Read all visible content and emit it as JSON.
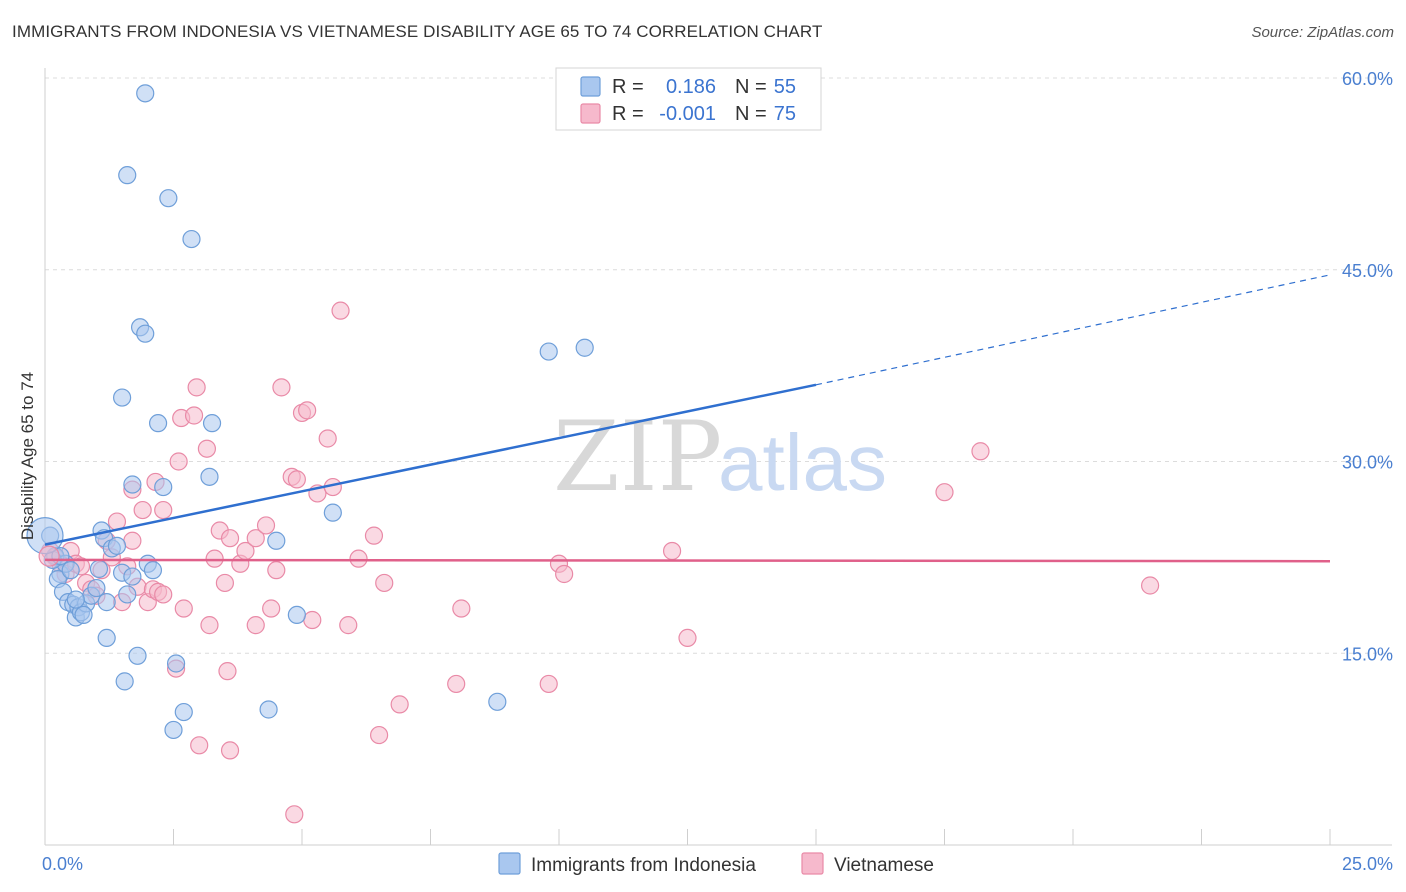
{
  "chart_data": {
    "type": "scatter",
    "title": "IMMIGRANTS FROM INDONESIA VS VIETNAMESE DISABILITY AGE 65 TO 74 CORRELATION CHART",
    "source": "Source: ZipAtlas.com",
    "ylabel": "Disability Age 65 to 74",
    "xlim": [
      0,
      25
    ],
    "ylim": [
      0,
      60
    ],
    "x_tick_labels": [
      "0.0%",
      "25.0%"
    ],
    "y_ticks": [
      15,
      30,
      45,
      60
    ],
    "y_tick_labels": [
      "15.0%",
      "30.0%",
      "45.0%",
      "60.0%"
    ],
    "watermark": {
      "zip": "ZIP",
      "atlas": "atlas"
    },
    "legend": {
      "rows": [
        {
          "r_label": "R = ",
          "r_value": "0.186",
          "n_label": "N = ",
          "n_value": "55"
        },
        {
          "r_label": "R = ",
          "r_value": "-0.001",
          "n_label": "N = ",
          "n_value": "75"
        }
      ]
    },
    "series": [
      {
        "name": "Immigrants from Indonesia",
        "color": "#a9c7ef",
        "stroke": "#6f9fd9",
        "line_color": "#2f6fcf",
        "trend": {
          "x0": 0,
          "y0": 23.5,
          "x1": 15,
          "y1": 36.0,
          "x_end": 25,
          "y_end": 44.6
        },
        "points": [
          [
            0.1,
            24.2
          ],
          [
            0.2,
            22.6
          ],
          [
            0.3,
            21.2
          ],
          [
            0.25,
            20.8
          ],
          [
            0.35,
            19.8
          ],
          [
            0.4,
            22.0
          ],
          [
            0.5,
            21.5
          ],
          [
            0.45,
            19.0
          ],
          [
            0.55,
            18.8
          ],
          [
            0.6,
            17.8
          ],
          [
            0.65,
            18.6
          ],
          [
            0.7,
            18.2
          ],
          [
            0.8,
            18.9
          ],
          [
            0.9,
            19.5
          ],
          [
            0.75,
            18.0
          ],
          [
            1.0,
            20.1
          ],
          [
            1.05,
            21.6
          ],
          [
            1.1,
            24.6
          ],
          [
            1.15,
            24.0
          ],
          [
            1.3,
            23.2
          ],
          [
            1.4,
            23.4
          ],
          [
            1.5,
            21.3
          ],
          [
            1.6,
            19.6
          ],
          [
            1.2,
            19.0
          ],
          [
            1.7,
            21.0
          ],
          [
            2.0,
            22.0
          ],
          [
            2.1,
            21.5
          ],
          [
            1.95,
            58.8
          ],
          [
            1.6,
            52.4
          ],
          [
            2.4,
            50.6
          ],
          [
            2.85,
            47.4
          ],
          [
            1.85,
            40.5
          ],
          [
            1.95,
            40.0
          ],
          [
            1.5,
            35.0
          ],
          [
            2.2,
            33.0
          ],
          [
            3.25,
            33.0
          ],
          [
            1.7,
            28.2
          ],
          [
            2.3,
            28.0
          ],
          [
            3.2,
            28.8
          ],
          [
            4.5,
            23.8
          ],
          [
            5.6,
            26.0
          ],
          [
            4.9,
            18.0
          ],
          [
            1.2,
            16.2
          ],
          [
            1.8,
            14.8
          ],
          [
            2.55,
            14.2
          ],
          [
            1.55,
            12.8
          ],
          [
            2.7,
            10.4
          ],
          [
            4.35,
            10.6
          ],
          [
            2.5,
            9.0
          ],
          [
            9.8,
            38.6
          ],
          [
            10.5,
            38.9
          ],
          [
            8.8,
            11.2
          ],
          [
            0.15,
            22.3
          ],
          [
            0.3,
            22.6
          ],
          [
            0.6,
            19.2
          ]
        ]
      },
      {
        "name": "Vietnamese",
        "color": "#f6b9cc",
        "stroke": "#e98aa7",
        "line_color": "#e0608a",
        "trend": {
          "x0": 0,
          "y0": 22.3,
          "x1": 25,
          "y1": 22.2
        },
        "points": [
          [
            0.1,
            23.0
          ],
          [
            0.2,
            22.5
          ],
          [
            0.3,
            22.0
          ],
          [
            0.4,
            21.2
          ],
          [
            0.5,
            23.0
          ],
          [
            0.6,
            22.0
          ],
          [
            0.7,
            21.8
          ],
          [
            0.8,
            20.5
          ],
          [
            0.9,
            20.0
          ],
          [
            1.0,
            19.5
          ],
          [
            1.1,
            21.5
          ],
          [
            1.2,
            23.8
          ],
          [
            1.3,
            22.5
          ],
          [
            1.4,
            25.3
          ],
          [
            1.5,
            19.0
          ],
          [
            1.6,
            21.8
          ],
          [
            1.7,
            23.8
          ],
          [
            1.8,
            20.2
          ],
          [
            1.9,
            26.2
          ],
          [
            2.0,
            19.0
          ],
          [
            2.1,
            20.0
          ],
          [
            2.2,
            19.8
          ],
          [
            2.3,
            19.6
          ],
          [
            1.7,
            27.8
          ],
          [
            2.15,
            28.4
          ],
          [
            2.6,
            30.0
          ],
          [
            2.65,
            33.4
          ],
          [
            2.9,
            33.6
          ],
          [
            2.95,
            35.8
          ],
          [
            3.15,
            31.0
          ],
          [
            3.3,
            22.4
          ],
          [
            3.4,
            24.6
          ],
          [
            3.5,
            20.5
          ],
          [
            3.6,
            24.0
          ],
          [
            3.8,
            22.0
          ],
          [
            3.9,
            23.0
          ],
          [
            4.1,
            24.0
          ],
          [
            4.3,
            25.0
          ],
          [
            4.4,
            18.5
          ],
          [
            4.5,
            21.5
          ],
          [
            4.6,
            35.8
          ],
          [
            4.8,
            28.8
          ],
          [
            4.9,
            28.6
          ],
          [
            5.0,
            33.8
          ],
          [
            5.1,
            34.0
          ],
          [
            5.3,
            27.5
          ],
          [
            5.5,
            31.8
          ],
          [
            5.6,
            28.0
          ],
          [
            5.75,
            41.8
          ],
          [
            5.9,
            17.2
          ],
          [
            6.1,
            22.4
          ],
          [
            6.4,
            24.2
          ],
          [
            6.6,
            20.5
          ],
          [
            2.3,
            26.2
          ],
          [
            2.7,
            18.5
          ],
          [
            3.2,
            17.2
          ],
          [
            4.1,
            17.2
          ],
          [
            5.2,
            17.6
          ],
          [
            2.55,
            13.8
          ],
          [
            3.55,
            13.6
          ],
          [
            3.0,
            7.8
          ],
          [
            3.6,
            7.4
          ],
          [
            6.5,
            8.6
          ],
          [
            6.9,
            11.0
          ],
          [
            8.0,
            12.6
          ],
          [
            8.1,
            18.5
          ],
          [
            9.8,
            12.6
          ],
          [
            10.0,
            22.0
          ],
          [
            10.1,
            21.2
          ],
          [
            12.2,
            23.0
          ],
          [
            12.5,
            16.2
          ],
          [
            17.5,
            27.6
          ],
          [
            18.2,
            30.8
          ],
          [
            21.5,
            20.3
          ],
          [
            4.85,
            2.4
          ]
        ]
      }
    ]
  }
}
